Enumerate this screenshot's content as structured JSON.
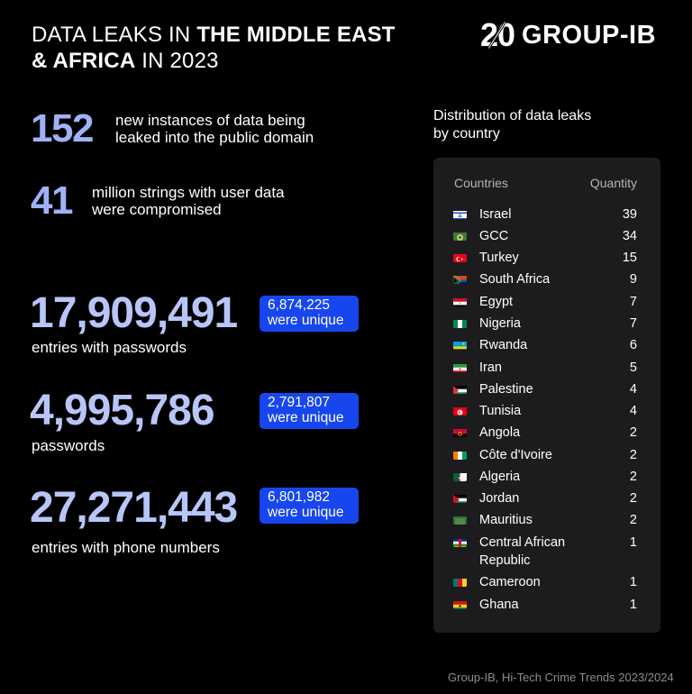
{
  "header": {
    "title_part1": "DATA LEAKS IN ",
    "title_bold1": "THE MIDDLE EAST",
    "title_bold2": "& AFRICA",
    "title_part2": " IN 2023"
  },
  "logo": {
    "number": "20",
    "brand": "GROUP-IB"
  },
  "stats": [
    {
      "value": "152",
      "description_line1": "new instances of data being",
      "description_line2": "leaked into the public domain"
    },
    {
      "value": "41",
      "description_line1": "million strings with user data",
      "description_line2": "were compromised"
    }
  ],
  "leaks": [
    {
      "value": "17,909,491",
      "label": "entries with passwords",
      "unique_value": "6,874,225",
      "unique_label": "were unique"
    },
    {
      "value": "4,995,786",
      "label": "passwords",
      "unique_value": "2,791,807",
      "unique_label": "were unique"
    },
    {
      "value": "27,271,443",
      "label": "entries with phone numbers",
      "unique_value": "6,801,982",
      "unique_label": "were unique"
    }
  ],
  "distribution": {
    "title_line1": "Distribution of data leaks",
    "title_line2": "by country",
    "col_countries": "Countries",
    "col_quantity": "Quantity",
    "rows": [
      {
        "country": "Israel",
        "quantity": "39"
      },
      {
        "country": "GCC",
        "quantity": "34"
      },
      {
        "country": "Turkey",
        "quantity": "15"
      },
      {
        "country": "South Africa",
        "quantity": "9"
      },
      {
        "country": "Egypt",
        "quantity": "7"
      },
      {
        "country": "Nigeria",
        "quantity": "7"
      },
      {
        "country": "Rwanda",
        "quantity": "6"
      },
      {
        "country": "Iran",
        "quantity": "5"
      },
      {
        "country": "Palestine",
        "quantity": "4"
      },
      {
        "country": "Tunisia",
        "quantity": "4"
      },
      {
        "country": "Angola",
        "quantity": "2"
      },
      {
        "country": "Côte d'Ivoire",
        "quantity": "2"
      },
      {
        "country": "Algeria",
        "quantity": "2"
      },
      {
        "country": "Jordan",
        "quantity": "2"
      },
      {
        "country": "Mauritius",
        "quantity": "2"
      },
      {
        "country": "Central African",
        "country_line2": "Republic",
        "quantity": "1"
      },
      {
        "country": "Cameroon",
        "quantity": "1"
      },
      {
        "country": "Ghana",
        "quantity": "1"
      }
    ]
  },
  "footer": {
    "source": "Group-IB, Hi-Tech Crime Trends 2023/2024"
  },
  "colors": {
    "background": "#000000",
    "accent_number": "#b7c5f8",
    "pill": "#1746ee",
    "panel": "#1c1c1e"
  }
}
